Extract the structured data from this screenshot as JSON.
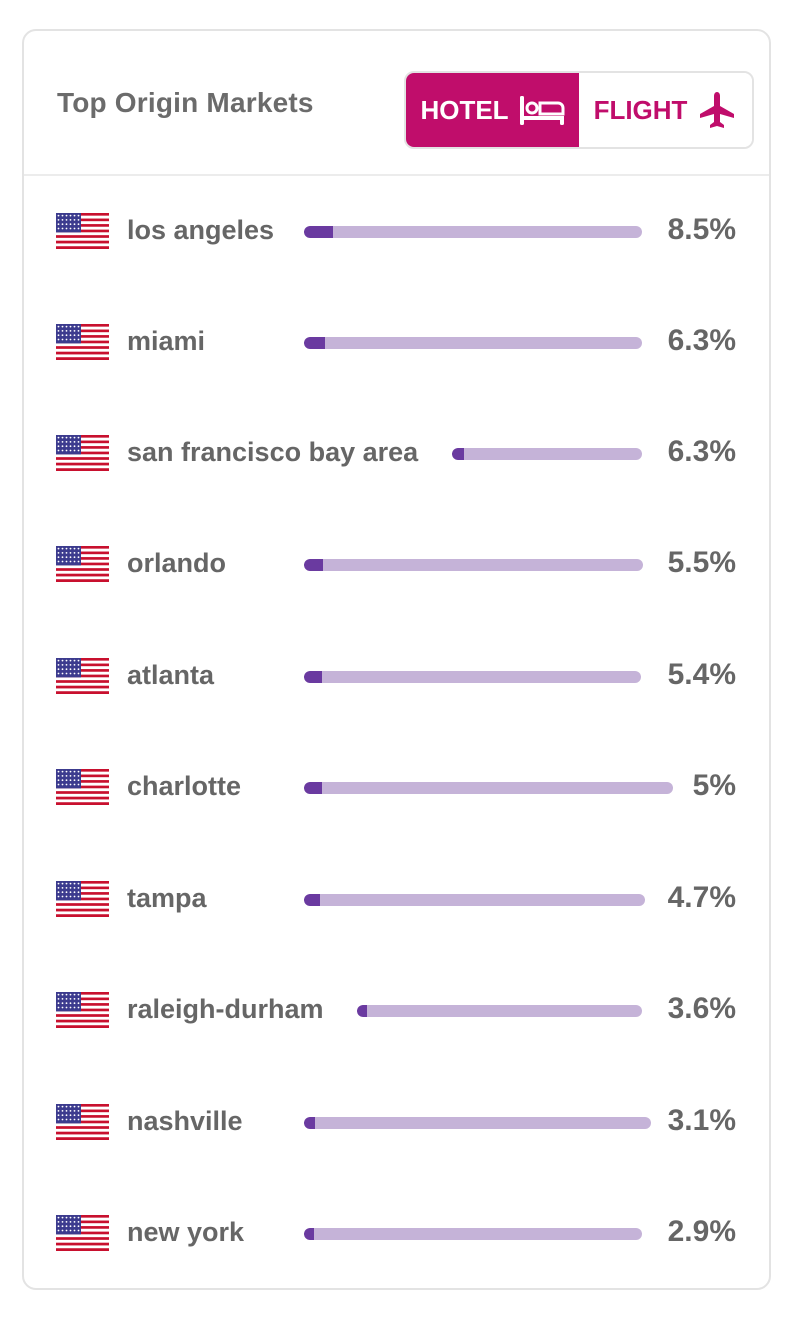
{
  "header": {
    "title": "Top Origin Markets",
    "toggle": {
      "hotel_label": "HOTEL",
      "flight_label": "FLIGHT",
      "hotel_icon": "bed-icon",
      "flight_icon": "airplane-icon",
      "active": "hotel"
    }
  },
  "colors": {
    "accent": "#c00d6b",
    "bar_track": "#c5b3d8",
    "bar_fill": "#6a3aa0",
    "text": "#666666"
  },
  "markets": [
    {
      "city": "los angeles",
      "flag": "us-flag-icon",
      "value": 8.5,
      "label": "8.5%"
    },
    {
      "city": "miami",
      "flag": "us-flag-icon",
      "value": 6.3,
      "label": "6.3%"
    },
    {
      "city": "san francisco bay area",
      "flag": "us-flag-icon",
      "value": 6.3,
      "label": "6.3%"
    },
    {
      "city": "orlando",
      "flag": "us-flag-icon",
      "value": 5.5,
      "label": "5.5%"
    },
    {
      "city": "atlanta",
      "flag": "us-flag-icon",
      "value": 5.4,
      "label": "5.4%"
    },
    {
      "city": "charlotte",
      "flag": "us-flag-icon",
      "value": 5.0,
      "label": "5%"
    },
    {
      "city": "tampa",
      "flag": "us-flag-icon",
      "value": 4.7,
      "label": "4.7%"
    },
    {
      "city": "raleigh-durham",
      "flag": "us-flag-icon",
      "value": 3.6,
      "label": "3.6%"
    },
    {
      "city": "nashville",
      "flag": "us-flag-icon",
      "value": 3.1,
      "label": "3.1%"
    },
    {
      "city": "new york",
      "flag": "us-flag-icon",
      "value": 2.9,
      "label": "2.9%"
    }
  ]
}
